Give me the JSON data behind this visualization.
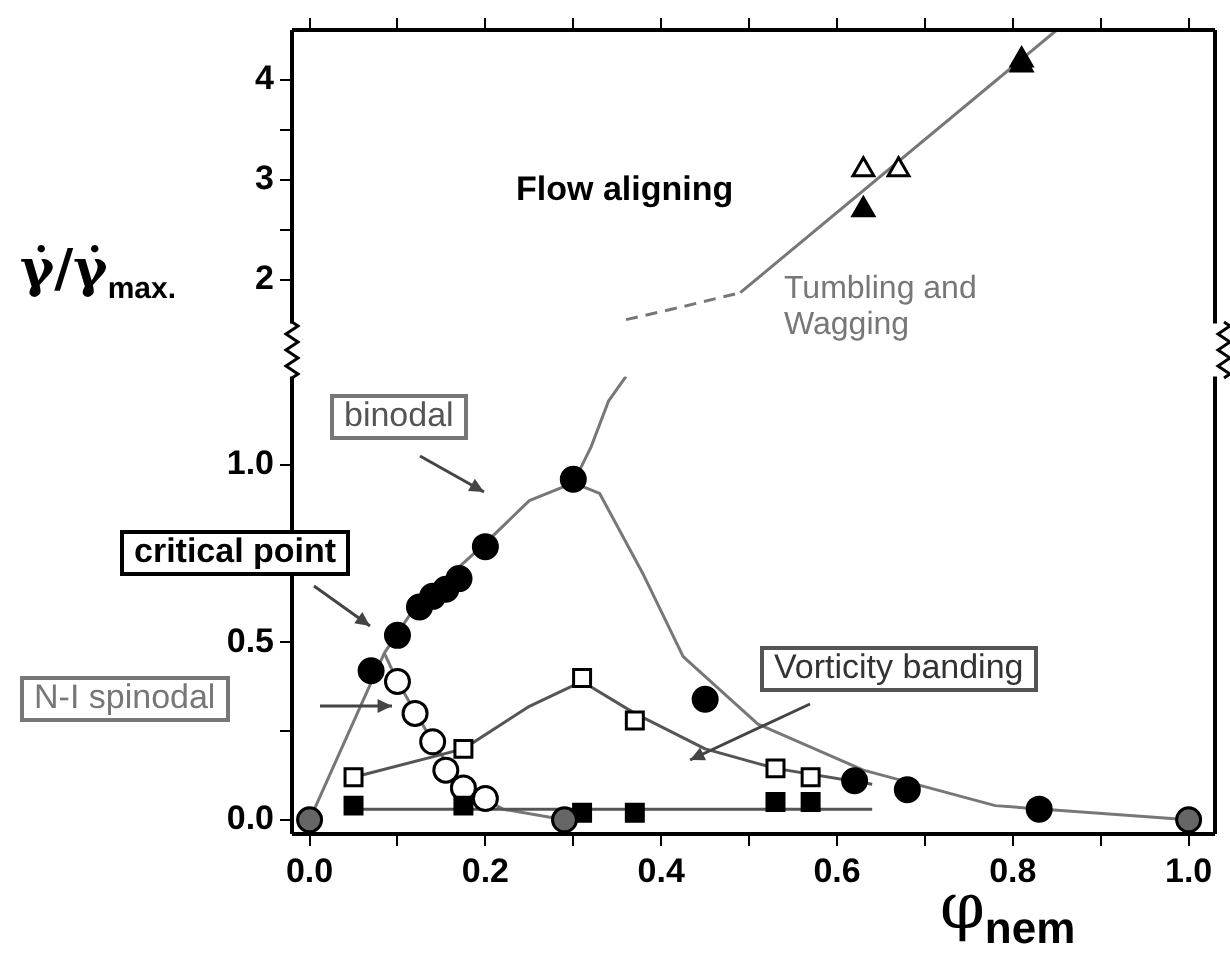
{
  "chart_data": [
    {
      "type": "scatter",
      "ylabel": "γ̇/γ̇$_{max.}$",
      "xlim": [
        -0.02,
        1.03
      ],
      "ylim": [
        1.56,
        4.5
      ],
      "xticks": [
        {
          "value": 0,
          "label": null
        },
        {
          "value": 0.1,
          "label": null
        },
        {
          "value": 0.2,
          "label": null
        },
        {
          "value": 0.3,
          "label": null
        },
        {
          "value": 0.4,
          "label": null
        },
        {
          "value": 0.5,
          "label": null
        },
        {
          "value": 0.6,
          "label": null
        },
        {
          "value": 0.7,
          "label": null
        },
        {
          "value": 0.8,
          "label": null
        },
        {
          "value": 0.9,
          "label": null
        },
        {
          "value": 1,
          "label": null
        }
      ],
      "yticks": [
        2,
        {
          "value": 2.5,
          "label": null
        },
        3,
        {
          "value": 3.5,
          "label": null
        },
        4
      ],
      "tick_labels": "y",
      "grid": false,
      "annotations": [
        "Flow aligning",
        "Tumbling and Wagging"
      ],
      "series": [
        {
          "type": "line",
          "marker": "none",
          "line_style": "dashed",
          "color": "#777777",
          "x": [
            0.36,
            0.42,
            0.49
          ],
          "values": [
            1.6,
            1.72,
            1.87
          ]
        },
        {
          "type": "line",
          "marker": "none",
          "line_style": "solid",
          "color": "#777777",
          "x": [
            0.49,
            0.85
          ],
          "values": [
            1.87,
            4.5
          ]
        },
        {
          "marker": "triangle",
          "color": "#ffffff",
          "x": [
            0.63,
            0.67,
            0.81
          ],
          "values": [
            3.1,
            3.1,
            4.2
          ]
        },
        {
          "marker": "triangle",
          "color": "#000000",
          "x": [
            0.63,
            0.81
          ],
          "values": [
            2.7,
            4.15
          ]
        }
      ]
    },
    {
      "type": "scatter",
      "xlabel": "φ$_{nem}$",
      "xlim": [
        -0.02,
        1.03
      ],
      "ylim": [
        -0.04,
        1.25
      ],
      "xticks": [
        {
          "value": 0,
          "label": "0.0"
        },
        {
          "value": 0.1,
          "label": null
        },
        {
          "value": 0.2,
          "label": "0.2"
        },
        {
          "value": 0.3,
          "label": null
        },
        {
          "value": 0.4,
          "label": "0.4"
        },
        {
          "value": 0.5,
          "label": null
        },
        {
          "value": 0.6,
          "label": "0.6"
        },
        {
          "value": 0.7,
          "label": null
        },
        {
          "value": 0.8,
          "label": "0.8"
        },
        {
          "value": 0.9,
          "label": null
        },
        {
          "value": 1,
          "label": "1.0"
        }
      ],
      "yticks": [
        {
          "value": 0,
          "label": "0.0"
        },
        {
          "value": 0.25,
          "label": null
        },
        {
          "value": 0.5,
          "label": "0.5"
        },
        {
          "value": 0.75,
          "label": null
        },
        {
          "value": 1,
          "label": "1.0"
        }
      ],
      "grid": false,
      "annotations": [
        "binodal",
        "critical point",
        "N-I spinodal",
        "Vorticity banding"
      ],
      "series": [
        {
          "type": "line",
          "marker": "none",
          "line_style": "solid",
          "color": "#777777",
          "x": [
            0,
            0.085,
            0.12,
            0.2,
            0.25,
            0.3,
            0.33,
            0.38,
            0.425,
            0.51,
            0.63,
            0.78,
            1
          ],
          "values": [
            0,
            0.47,
            0.6,
            0.78,
            0.9,
            0.95,
            0.92,
            0.69,
            0.46,
            0.27,
            0.14,
            0.04,
            0
          ]
        },
        {
          "type": "line",
          "marker": "none",
          "line_style": "solid",
          "color": "#777777",
          "x": [
            0.085,
            0.1,
            0.14,
            0.175,
            0.22,
            0.29
          ],
          "values": [
            0.47,
            0.39,
            0.22,
            0.09,
            0.03,
            0
          ]
        },
        {
          "type": "line",
          "marker": "none",
          "line_style": "solid",
          "color": "#555555",
          "x": [
            0.05,
            0.175,
            0.25,
            0.31,
            0.37,
            0.45,
            0.53,
            0.64
          ],
          "values": [
            0.12,
            0.2,
            0.32,
            0.39,
            0.3,
            0.2,
            0.145,
            0.1
          ]
        },
        {
          "type": "line",
          "marker": "none",
          "line_style": "solid",
          "color": "#555555",
          "x": [
            0.05,
            0.64
          ],
          "values": [
            0.03,
            0.03
          ]
        },
        {
          "type": "line",
          "marker": "none",
          "line_style": "solid",
          "color": "#777777",
          "x": [
            0.3,
            0.32,
            0.34,
            0.36
          ],
          "values": [
            0.95,
            1.05,
            1.18,
            1.25
          ]
        },
        {
          "marker": "circle",
          "color": "#000000",
          "x": [
            0.07,
            0.1,
            0.125,
            0.14,
            0.155,
            0.17,
            0.2,
            0.3,
            0.45,
            0.62,
            0.68,
            0.83
          ],
          "values": [
            0.42,
            0.52,
            0.6,
            0.63,
            0.65,
            0.68,
            0.77,
            0.96,
            0.34,
            0.11,
            0.085,
            0.03
          ]
        },
        {
          "marker": "circle",
          "color": "#ffffff",
          "x": [
            0.1,
            0.12,
            0.14,
            0.155,
            0.175,
            0.2
          ],
          "values": [
            0.39,
            0.3,
            0.22,
            0.14,
            0.09,
            0.06
          ]
        },
        {
          "marker": "square",
          "color": "#ffffff",
          "x": [
            0.05,
            0.175,
            0.31,
            0.37,
            0.53,
            0.57
          ],
          "values": [
            0.12,
            0.2,
            0.4,
            0.28,
            0.145,
            0.12
          ]
        },
        {
          "marker": "square",
          "color": "#000000",
          "x": [
            0.05,
            0.175,
            0.31,
            0.37,
            0.53,
            0.57
          ],
          "values": [
            0.04,
            0.04,
            0.02,
            0.02,
            0.05,
            0.05
          ]
        },
        {
          "marker": "circle",
          "color": "#666666",
          "x": [
            0,
            0.29,
            1
          ],
          "values": [
            0,
            0,
            0
          ]
        }
      ]
    }
  ]
}
